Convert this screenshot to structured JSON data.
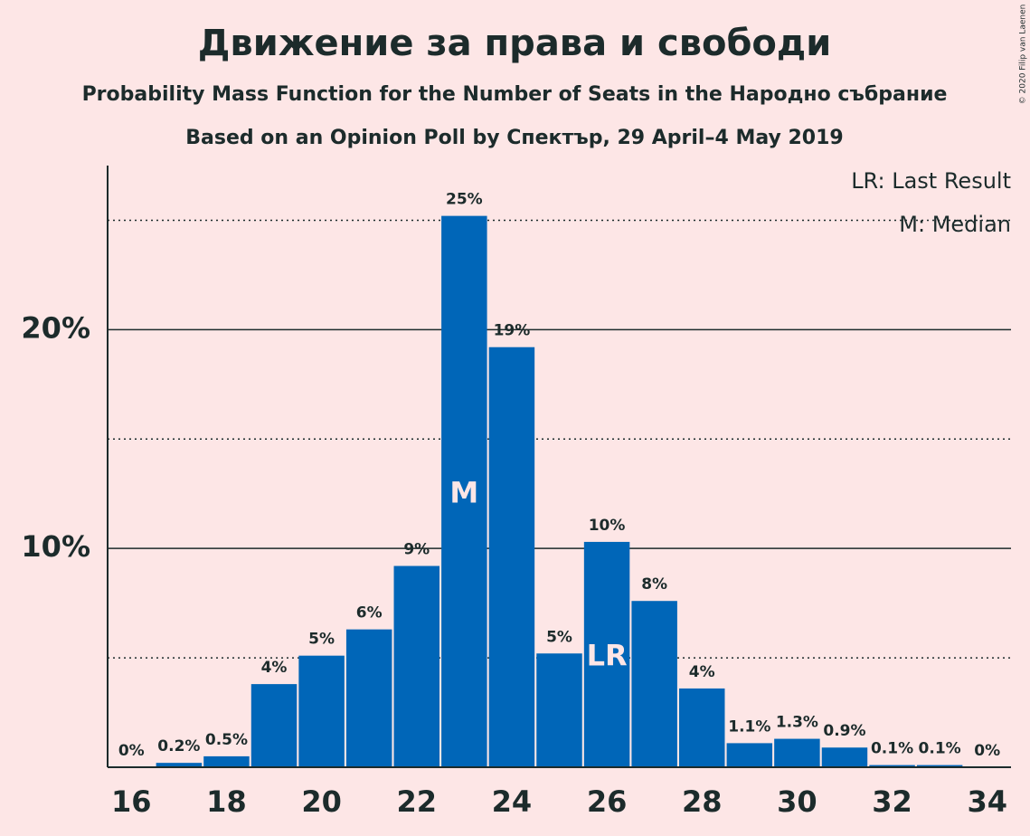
{
  "chart_data": {
    "type": "bar",
    "title": "Движение за права и свободи",
    "subtitle": "Probability Mass Function for the Number of Seats in the Народно събрание",
    "subtitle2": "Based on an Opinion Poll by Спектър, 29 April–4 May 2019",
    "copyright": "© 2020 Filip van Laenen",
    "x": [
      16,
      17,
      18,
      19,
      20,
      21,
      22,
      23,
      24,
      25,
      26,
      27,
      28,
      29,
      30,
      31,
      32,
      33,
      34
    ],
    "values": [
      0,
      0.2,
      0.5,
      3.8,
      5.1,
      6.3,
      9.2,
      25.2,
      19.2,
      5.2,
      10.3,
      7.6,
      3.6,
      1.1,
      1.3,
      0.9,
      0.1,
      0.1,
      0
    ],
    "value_labels": [
      "0%",
      "0.2%",
      "0.5%",
      "4%",
      "5%",
      "6%",
      "9%",
      "25%",
      "19%",
      "5%",
      "10%",
      "8%",
      "4%",
      "1.1%",
      "1.3%",
      "0.9%",
      "0.1%",
      "0.1%",
      "0%"
    ],
    "color": "#0066b8",
    "xlim": [
      15.5,
      34.5
    ],
    "xticks": [
      16,
      18,
      20,
      22,
      24,
      26,
      28,
      30,
      32,
      34
    ],
    "ylim": [
      0,
      27.5
    ],
    "yticks": [
      {
        "value": 10,
        "label": "10%"
      },
      {
        "value": 20,
        "label": "20%"
      }
    ],
    "yminorticks": [
      5,
      15,
      25
    ],
    "grid": true,
    "markers": [
      {
        "x": 23,
        "label": "M"
      },
      {
        "x": 26,
        "label": "LR"
      }
    ],
    "legend": [
      "LR: Last Result",
      "M: Median"
    ],
    "legend_position": "top-right"
  }
}
